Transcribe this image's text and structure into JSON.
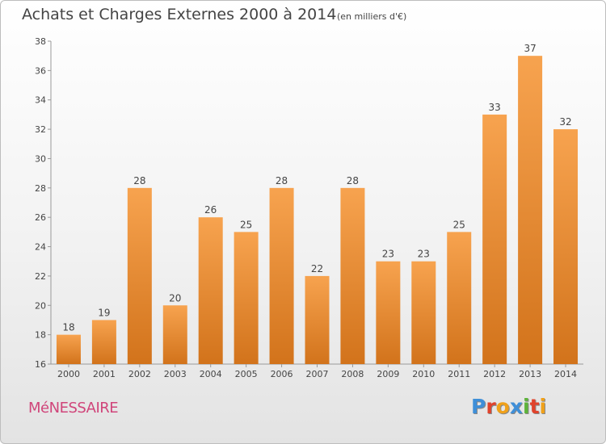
{
  "chart_data": {
    "type": "bar",
    "title": "Achats et Charges Externes 2000 à 2014",
    "subtitle": "(en milliers d'€)",
    "xlabel": "",
    "ylabel": "",
    "categories": [
      "2000",
      "2001",
      "2002",
      "2003",
      "2004",
      "2005",
      "2006",
      "2007",
      "2008",
      "2009",
      "2010",
      "2011",
      "2012",
      "2013",
      "2014"
    ],
    "values": [
      18,
      19,
      28,
      20,
      26,
      25,
      28,
      22,
      28,
      23,
      23,
      25,
      33,
      37,
      32
    ],
    "data_labels": [
      "18",
      "19",
      "28",
      "20",
      "26",
      "25",
      "28",
      "22",
      "28",
      "23",
      "23",
      "25",
      "33",
      "37",
      "32"
    ],
    "ylim": [
      16,
      38
    ],
    "yticks": [
      "16",
      "18",
      "20",
      "22",
      "24",
      "26",
      "28",
      "30",
      "32",
      "34",
      "36",
      "38"
    ],
    "grid": false,
    "legend": "none",
    "bar_color_top": "#f7a34f",
    "bar_color_bottom": "#d2731b"
  },
  "footer": {
    "commune": "MéNESSAIRE",
    "brand_letters": [
      {
        "char": "P",
        "color": "#3f8fd8"
      },
      {
        "char": "r",
        "color": "#e0432c"
      },
      {
        "char": "o",
        "color": "#f0a11a"
      },
      {
        "char": "x",
        "color": "#3f8fd8"
      },
      {
        "char": "i",
        "color": "#5db33a"
      },
      {
        "char": "t",
        "color": "#e0432c"
      },
      {
        "char": "i",
        "color": "#f0a11a"
      }
    ],
    "commune_color": "#d0457a"
  }
}
